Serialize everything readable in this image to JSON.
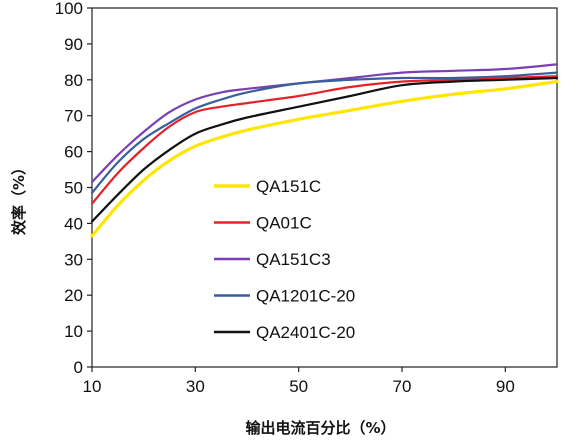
{
  "chart_data": {
    "type": "line",
    "title": "",
    "xlabel": "输出电流百分比（%）",
    "ylabel": "效率（%）",
    "xlim": [
      10,
      100
    ],
    "ylim": [
      0,
      100
    ],
    "xticks": [
      10,
      30,
      50,
      70,
      90
    ],
    "yticks": [
      0,
      10,
      20,
      30,
      40,
      50,
      60,
      70,
      80,
      90,
      100
    ],
    "grid": false,
    "legend_position": "center-left",
    "series": [
      {
        "name": "QA151C",
        "color": "#FFE600",
        "x": [
          10,
          15,
          20,
          25,
          30,
          35,
          40,
          50,
          60,
          70,
          80,
          90,
          100
        ],
        "y": [
          36.5,
          45,
          52,
          57.5,
          61.5,
          64,
          66,
          69,
          71.5,
          74,
          76,
          77.5,
          79.5
        ]
      },
      {
        "name": "QA01C",
        "color": "#E8202A",
        "x": [
          10,
          15,
          20,
          25,
          30,
          35,
          40,
          50,
          60,
          70,
          80,
          90,
          100
        ],
        "y": [
          45.5,
          54,
          61,
          67,
          71,
          72.5,
          73.5,
          75.5,
          78,
          79.5,
          80,
          80.5,
          81
        ]
      },
      {
        "name": "QA151C3",
        "color": "#7B3FB5",
        "x": [
          10,
          15,
          20,
          25,
          30,
          35,
          40,
          50,
          60,
          70,
          80,
          90,
          100
        ],
        "y": [
          51.5,
          59,
          65.5,
          71,
          74.5,
          76.5,
          77.5,
          79,
          80.5,
          82,
          82.5,
          83,
          84.3
        ]
      },
      {
        "name": "QA1201C-20",
        "color": "#3A5E9C",
        "x": [
          10,
          15,
          20,
          25,
          30,
          35,
          40,
          50,
          60,
          70,
          80,
          90,
          100
        ],
        "y": [
          48.5,
          57,
          63.5,
          68,
          72,
          74.5,
          76.5,
          79,
          80,
          80.5,
          80.5,
          81,
          82
        ]
      },
      {
        "name": "QA2401C-20",
        "color": "#111111",
        "x": [
          10,
          15,
          20,
          25,
          30,
          35,
          40,
          50,
          60,
          70,
          80,
          90,
          100
        ],
        "y": [
          40.5,
          48,
          55,
          60.5,
          65,
          67.5,
          69.5,
          72.5,
          75.5,
          78.5,
          79.5,
          80,
          80.5
        ]
      }
    ]
  }
}
